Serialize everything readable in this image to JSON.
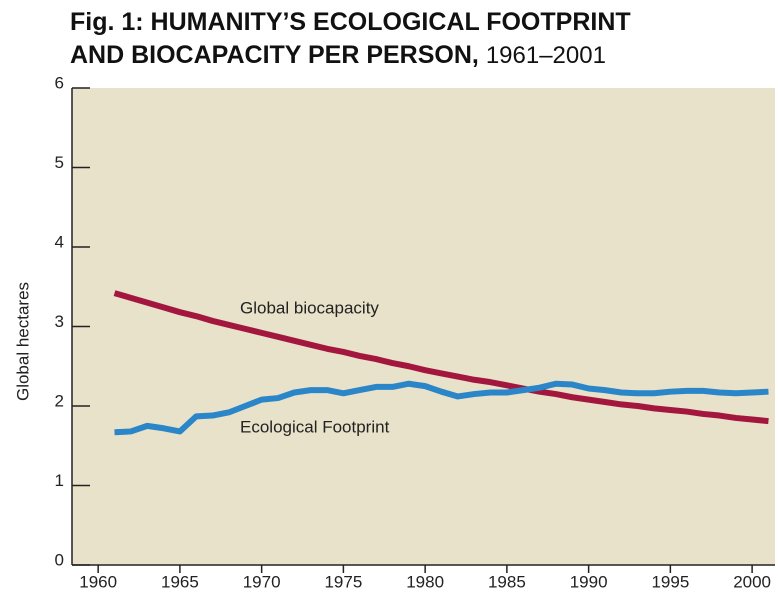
{
  "chart_data": {
    "type": "line",
    "title": [
      "Fig. 1: HUMANITY’S ECOLOGICAL FOOTPRINT",
      "AND BIOCAPACITY PER PERSON,"
    ],
    "subtitle": "1961–2001",
    "y_label": "Global hectares",
    "x": [
      1961,
      1962,
      1963,
      1964,
      1965,
      1966,
      1967,
      1968,
      1969,
      1970,
      1971,
      1972,
      1973,
      1974,
      1975,
      1976,
      1977,
      1978,
      1979,
      1980,
      1981,
      1982,
      1983,
      1984,
      1985,
      1986,
      1987,
      1988,
      1989,
      1990,
      1991,
      1992,
      1993,
      1994,
      1995,
      1996,
      1997,
      1998,
      1999,
      2000,
      2001
    ],
    "series": [
      {
        "name": "Global biocapacity",
        "color": "#a3173f",
        "values": [
          3.42,
          3.36,
          3.3,
          3.24,
          3.18,
          3.13,
          3.07,
          3.02,
          2.97,
          2.92,
          2.87,
          2.82,
          2.77,
          2.72,
          2.68,
          2.63,
          2.59,
          2.54,
          2.5,
          2.45,
          2.41,
          2.37,
          2.33,
          2.3,
          2.26,
          2.22,
          2.18,
          2.15,
          2.11,
          2.08,
          2.05,
          2.02,
          2.0,
          1.97,
          1.95,
          1.93,
          1.9,
          1.88,
          1.85,
          1.83,
          1.81
        ]
      },
      {
        "name": "Ecological Footprint",
        "color": "#2a86c8",
        "values": [
          1.67,
          1.68,
          1.75,
          1.72,
          1.68,
          1.87,
          1.88,
          1.92,
          2.0,
          2.08,
          2.1,
          2.17,
          2.2,
          2.2,
          2.16,
          2.2,
          2.24,
          2.24,
          2.28,
          2.25,
          2.18,
          2.12,
          2.15,
          2.17,
          2.17,
          2.2,
          2.23,
          2.28,
          2.27,
          2.22,
          2.2,
          2.17,
          2.16,
          2.16,
          2.18,
          2.19,
          2.19,
          2.17,
          2.16,
          2.17,
          2.18
        ]
      }
    ],
    "xlim": [
      1958.4,
      2001.4
    ],
    "xticks": [
      1960,
      1965,
      1970,
      1975,
      1980,
      1985,
      1990,
      1995,
      2000
    ],
    "ylim": [
      0,
      6
    ],
    "yticks": [
      0,
      1,
      2,
      3,
      4,
      5,
      6
    ],
    "background": "#e7e2c9"
  }
}
